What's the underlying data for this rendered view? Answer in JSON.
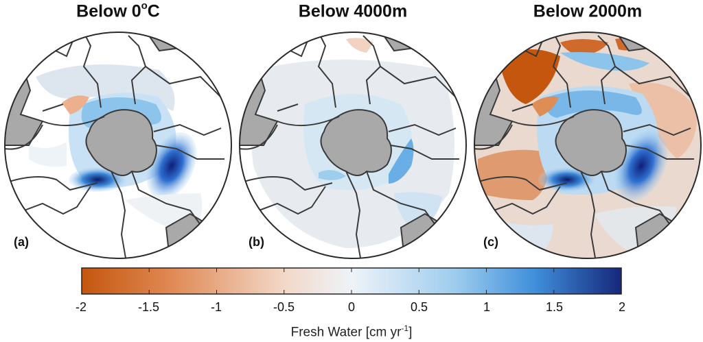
{
  "panels": [
    {
      "title_main": "Below 0",
      "title_sup": "o",
      "title_tail": "C",
      "label": "(a)"
    },
    {
      "title_main": "Below 4000m",
      "title_sup": "",
      "title_tail": "",
      "label": "(b)"
    },
    {
      "title_main": "Below 2000m",
      "title_sup": "",
      "title_tail": "",
      "label": "(c)"
    }
  ],
  "colorbar": {
    "ticks": [
      "-2",
      "-1.5",
      "-1",
      "-0.5",
      "0",
      "0.5",
      "1",
      "1.5",
      "2"
    ],
    "min": -2,
    "max": 2,
    "label_main": "Fresh Water [cm yr",
    "label_sup": "-1",
    "label_tail": "]",
    "colors": [
      "#c4560e",
      "#e08a55",
      "#f2d8c8",
      "#eef3f8",
      "#9fcdee",
      "#3f8fdb",
      "#16277a"
    ]
  },
  "colors": {
    "land": "#a9a9a9",
    "basin_boundary": "#3a3a3a",
    "positive_flux": "#2f6fcf",
    "negative_flux": "#d1651c"
  }
}
